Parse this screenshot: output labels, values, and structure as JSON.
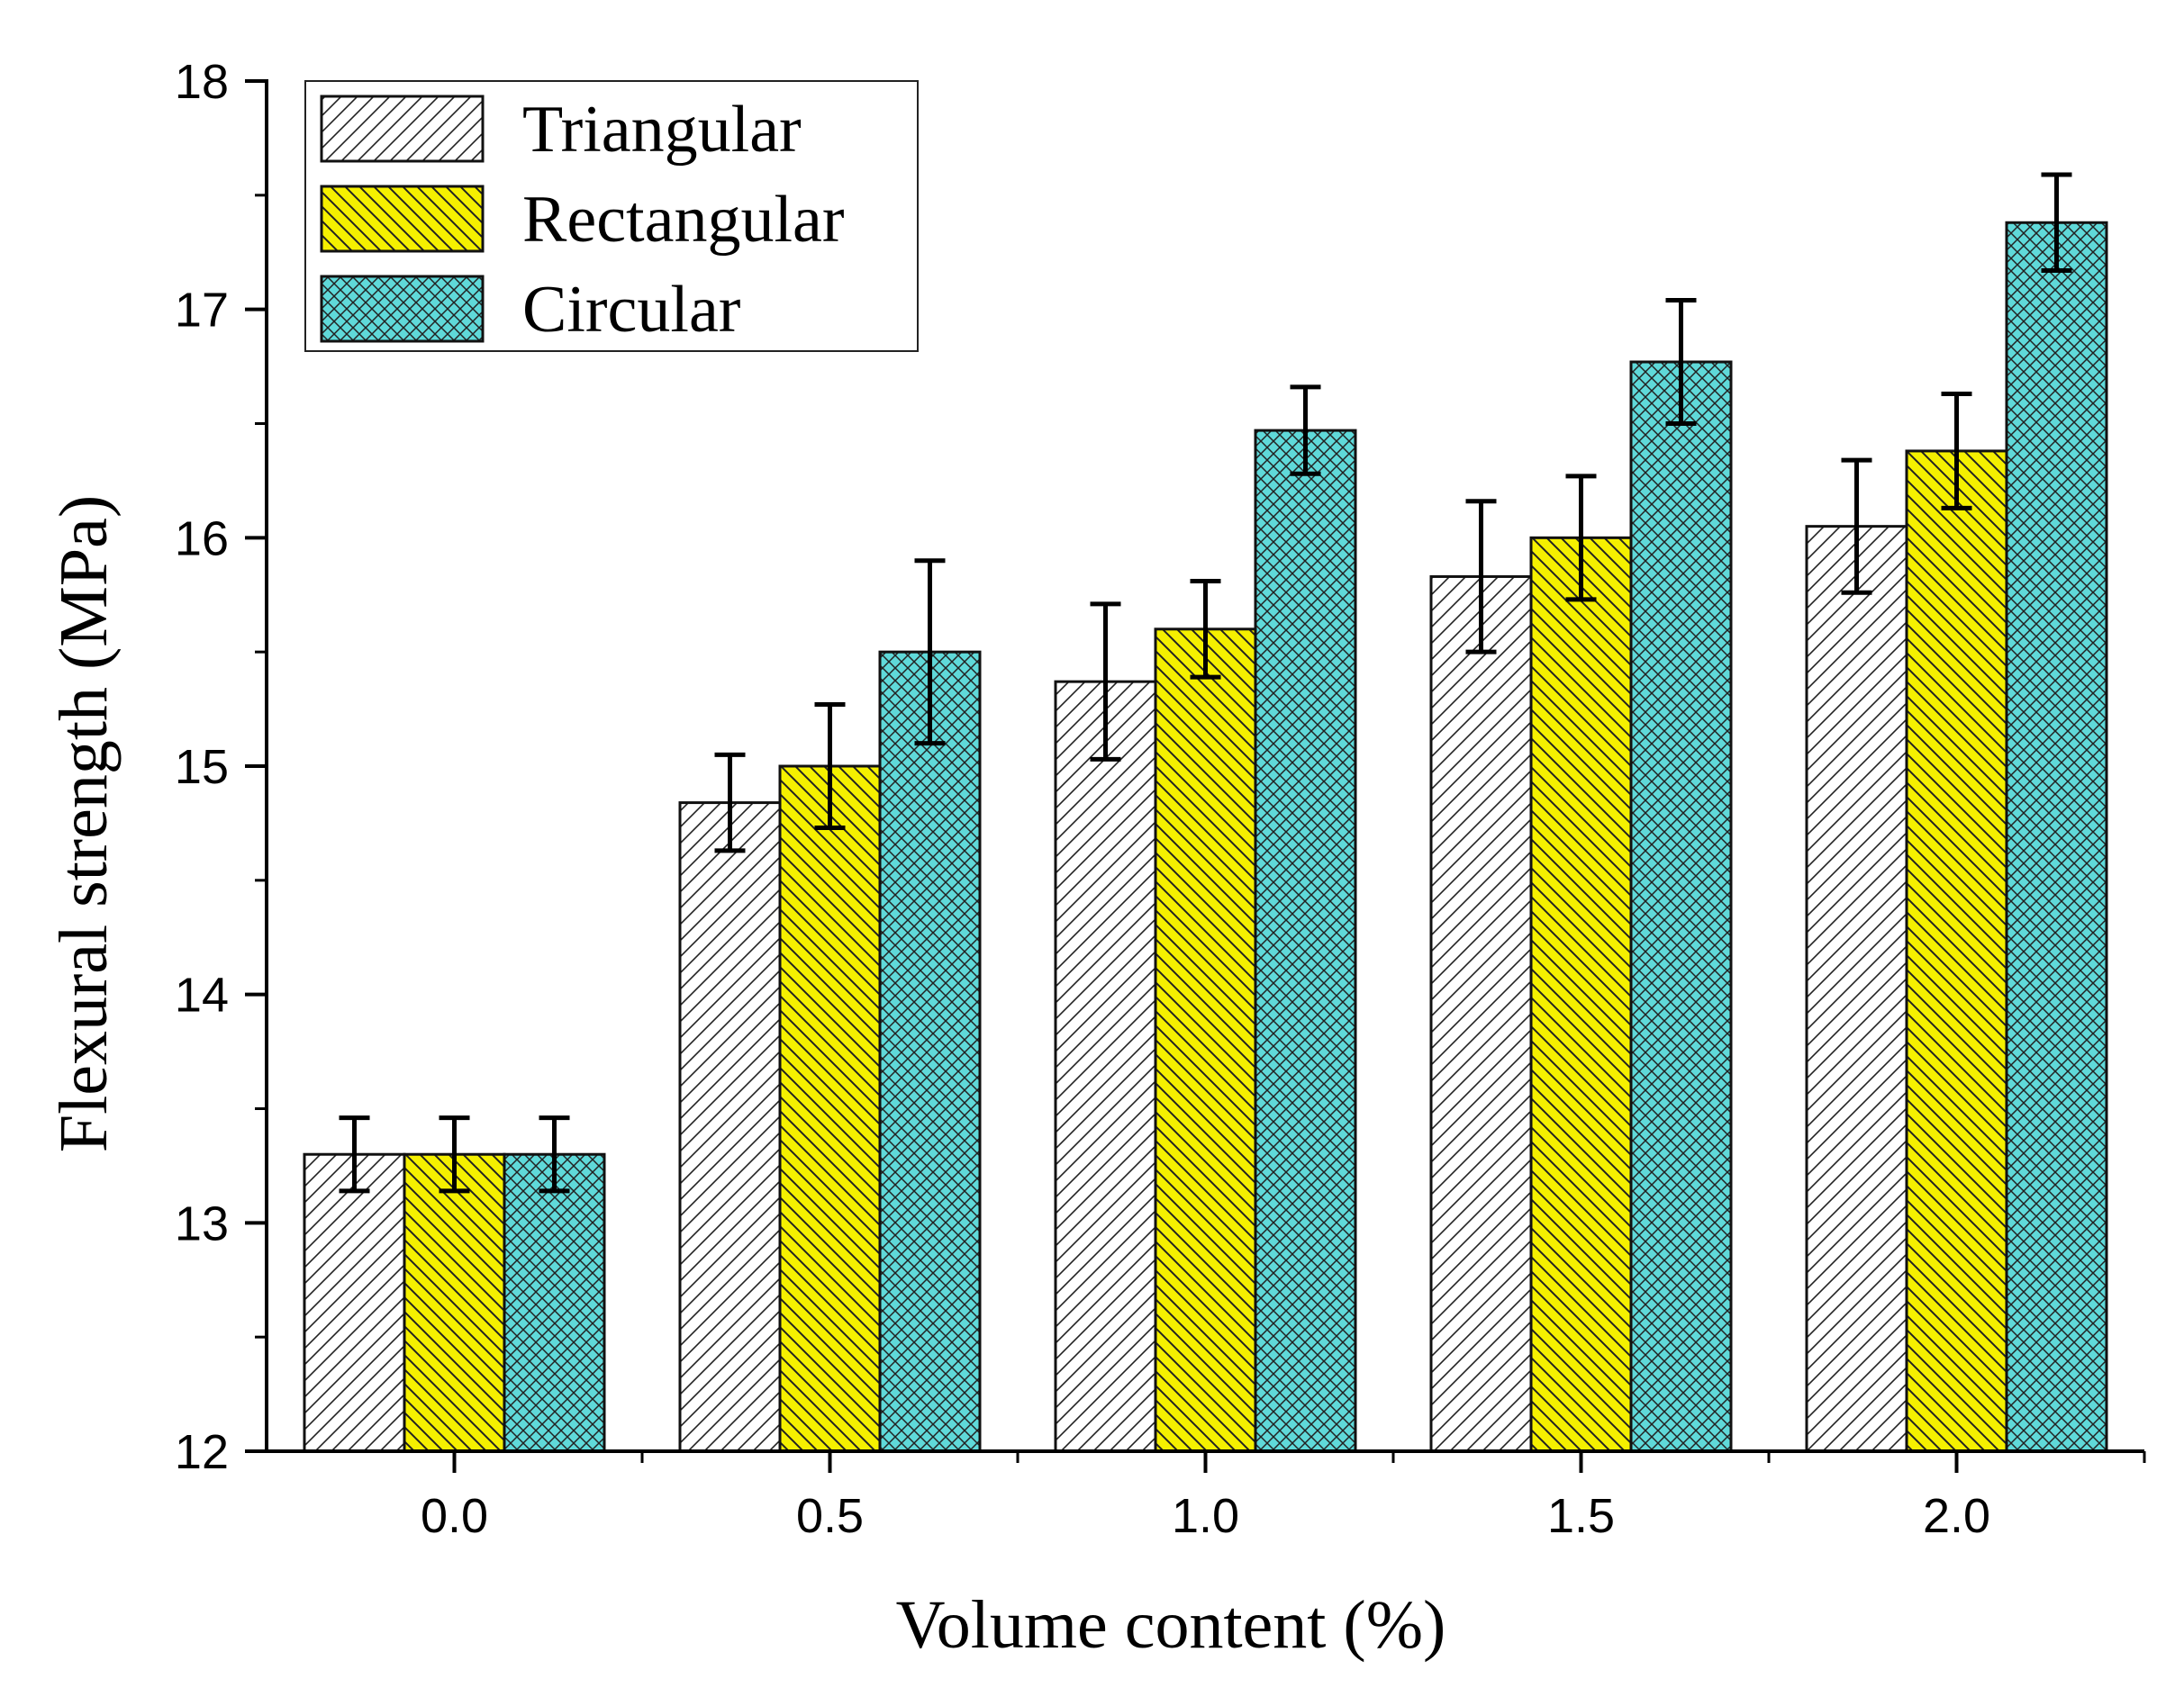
{
  "chart_data": {
    "type": "bar",
    "title": "",
    "xlabel": "Volume content (%)",
    "ylabel": "Flexural strength (MPa)",
    "categories": [
      "0.0",
      "0.5",
      "1.0",
      "1.5",
      "2.0"
    ],
    "ylim": [
      12,
      18
    ],
    "yticks": [
      "12",
      "13",
      "14",
      "15",
      "16",
      "17",
      "18"
    ],
    "legend_position": "top-left",
    "series": [
      {
        "name": "Triangular",
        "fill": "#ffffff",
        "pattern": "diagonal-hatch",
        "values": [
          13.3,
          14.84,
          15.37,
          15.83,
          16.05
        ],
        "errors": [
          0.16,
          0.21,
          0.34,
          0.33,
          0.29
        ]
      },
      {
        "name": "Rectangular",
        "fill": "#f5f000",
        "pattern": "back-diagonal-hatch",
        "values": [
          13.3,
          15.0,
          15.6,
          16.0,
          16.38
        ],
        "errors": [
          0.16,
          0.27,
          0.21,
          0.27,
          0.25
        ]
      },
      {
        "name": "Circular",
        "fill": "#5fd9d9",
        "pattern": "cross-hatch",
        "values": [
          13.3,
          15.5,
          16.47,
          16.77,
          17.38
        ],
        "errors": [
          0.16,
          0.4,
          0.19,
          0.27,
          0.21
        ]
      }
    ]
  }
}
